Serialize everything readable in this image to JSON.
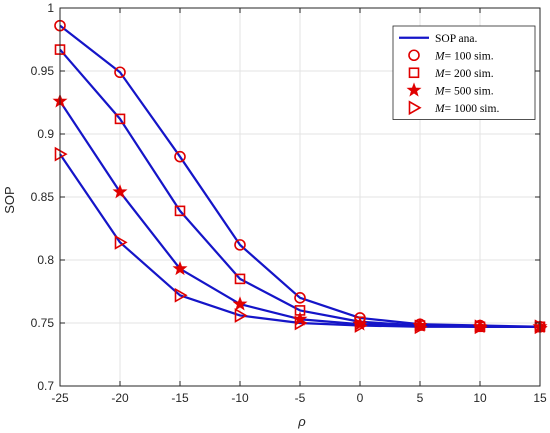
{
  "chart_data": {
    "type": "line",
    "xlabel": "ρ",
    "ylabel": "SOP",
    "xlim": [
      -25,
      15
    ],
    "ylim": [
      0.7,
      1.0
    ],
    "xticks": [
      -25,
      -20,
      -15,
      -10,
      -5,
      0,
      5,
      10,
      15
    ],
    "xtick_labels": [
      "-25",
      "-20",
      "-15",
      "-10",
      "-5",
      "0",
      "5",
      "10",
      "15"
    ],
    "yticks": [
      0.7,
      0.75,
      0.8,
      0.85,
      0.9,
      0.95,
      1.0
    ],
    "ytick_labels": [
      "0.7",
      "0.75",
      "0.8",
      "0.85",
      "0.9",
      "0.95",
      "1"
    ],
    "grid": true,
    "legend_position": "top-right",
    "x": [
      -25,
      -20,
      -15,
      -10,
      -5,
      0,
      5,
      10,
      15
    ],
    "series": [
      {
        "name": "M = 100 sim.",
        "legend_prefix": "M",
        "legend_suffix": "= 100 sim.",
        "marker": "circle",
        "values": [
          0.986,
          0.949,
          0.882,
          0.812,
          0.77,
          0.754,
          0.749,
          0.748,
          0.747
        ]
      },
      {
        "name": "M = 200 sim.",
        "legend_prefix": "M",
        "legend_suffix": "= 200 sim.",
        "marker": "square",
        "values": [
          0.967,
          0.912,
          0.839,
          0.785,
          0.76,
          0.751,
          0.748,
          0.747,
          0.747
        ]
      },
      {
        "name": "M = 500 sim.",
        "legend_prefix": "M",
        "legend_suffix": "= 500 sim.",
        "marker": "star",
        "values": [
          0.926,
          0.854,
          0.793,
          0.765,
          0.753,
          0.749,
          0.748,
          0.747,
          0.747
        ]
      },
      {
        "name": "M = 1000 sim.",
        "legend_prefix": "M",
        "legend_suffix": "= 1000 sim.",
        "marker": "triangle-right",
        "values": [
          0.884,
          0.814,
          0.772,
          0.756,
          0.75,
          0.748,
          0.747,
          0.747,
          0.747
        ]
      }
    ],
    "analytic_legend": "SOP ana.",
    "line_color": "#1515c8",
    "marker_color": "#e00000"
  }
}
